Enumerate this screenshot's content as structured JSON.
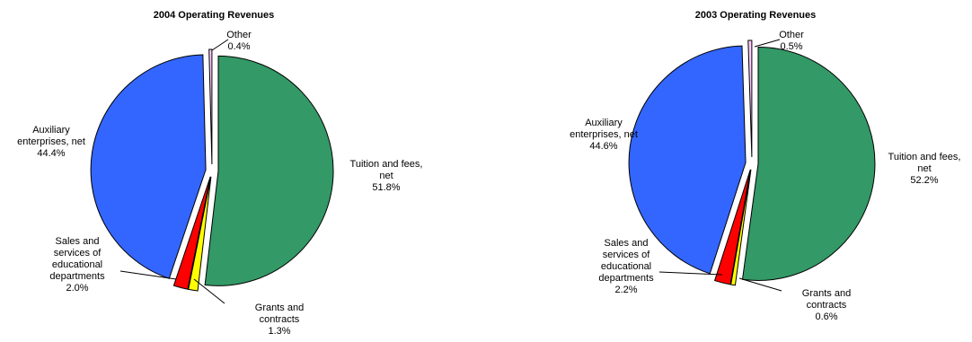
{
  "chart_data": [
    {
      "type": "pie",
      "title": "2004 Operating Revenues",
      "slices": [
        {
          "label": "Tuition and fees, net",
          "label_lines": [
            "Tuition and fees,",
            "net"
          ],
          "pct_text": "51.8%",
          "value": 51.8,
          "color": "#339966"
        },
        {
          "label": "Grants and contracts",
          "label_lines": [
            "Grants and",
            "contracts"
          ],
          "pct_text": "1.3%",
          "value": 1.3,
          "color": "#ffff00"
        },
        {
          "label": "Sales and services of educational departments",
          "label_lines": [
            "Sales and",
            "services of",
            "educational",
            "departments"
          ],
          "pct_text": "2.0%",
          "value": 2.0,
          "color": "#ff0000"
        },
        {
          "label": "Auxiliary enterprises, net",
          "label_lines": [
            "Auxiliary",
            "enterprises, net"
          ],
          "pct_text": "44.4%",
          "value": 44.4,
          "color": "#3366ff"
        },
        {
          "label": "Other",
          "label_lines": [
            "Other"
          ],
          "pct_text": "0.4%",
          "value": 0.4,
          "color": "#ffccff"
        }
      ]
    },
    {
      "type": "pie",
      "title": "2003 Operating Revenues",
      "slices": [
        {
          "label": "Tuition and fees, net",
          "label_lines": [
            "Tuition and fees,",
            "net"
          ],
          "pct_text": "52.2%",
          "value": 52.2,
          "color": "#339966"
        },
        {
          "label": "Grants and contracts",
          "label_lines": [
            "Grants and",
            "contracts"
          ],
          "pct_text": "0.6%",
          "value": 0.6,
          "color": "#ffff00"
        },
        {
          "label": "Sales and services of educational departments",
          "label_lines": [
            "Sales and",
            "services of",
            "educational",
            "departments"
          ],
          "pct_text": "2.2%",
          "value": 2.2,
          "color": "#ff0000"
        },
        {
          "label": "Auxiliary enterprises, net",
          "label_lines": [
            "Auxiliary",
            "enterprises, net"
          ],
          "pct_text": "44.6%",
          "value": 44.6,
          "color": "#3366ff"
        },
        {
          "label": "Other",
          "label_lines": [
            "Other"
          ],
          "pct_text": "0.5%",
          "value": 0.5,
          "color": "#ffccff"
        }
      ]
    }
  ]
}
